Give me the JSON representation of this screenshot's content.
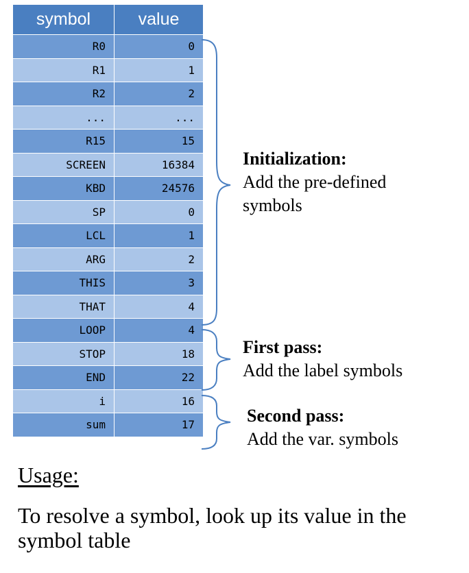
{
  "table": {
    "headers": [
      "symbol",
      "value"
    ],
    "rows": [
      {
        "symbol": "R0",
        "value": "0"
      },
      {
        "symbol": "R1",
        "value": "1"
      },
      {
        "symbol": "R2",
        "value": "2"
      },
      {
        "symbol": "...",
        "value": "..."
      },
      {
        "symbol": "R15",
        "value": "15"
      },
      {
        "symbol": "SCREEN",
        "value": "16384"
      },
      {
        "symbol": "KBD",
        "value": "24576"
      },
      {
        "symbol": "SP",
        "value": "0"
      },
      {
        "symbol": "LCL",
        "value": "1"
      },
      {
        "symbol": "ARG",
        "value": "2"
      },
      {
        "symbol": "THIS",
        "value": "3"
      },
      {
        "symbol": "THAT",
        "value": "4"
      },
      {
        "symbol": "LOOP",
        "value": "4"
      },
      {
        "symbol": "STOP",
        "value": "18"
      },
      {
        "symbol": "END",
        "value": "22"
      },
      {
        "symbol": "i",
        "value": "16"
      },
      {
        "symbol": "sum",
        "value": "17"
      }
    ]
  },
  "annotations": {
    "initialization": {
      "heading": "Initialization:",
      "line1": "Add the pre-defined",
      "line2": "symbols"
    },
    "first_pass": {
      "heading": "First pass:",
      "line1": "Add the label symbols"
    },
    "second_pass": {
      "heading": "Second pass:",
      "line1": "Add the var. symbols"
    }
  },
  "usage": {
    "heading": "Usage:",
    "text": "To resolve a symbol, look up its value in the symbol table"
  },
  "colors": {
    "header": "#4a7fc1",
    "row_dark": "#6e9ad3",
    "row_light": "#aac5e8",
    "bracket": "#4a7fc1"
  }
}
